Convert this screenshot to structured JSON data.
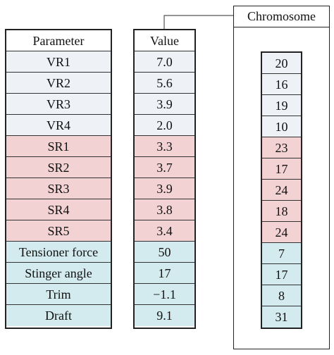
{
  "header": {
    "parameter": "Parameter",
    "value": "Value",
    "chromosome": "Chromosome"
  },
  "rows": [
    {
      "parameter": "VR1",
      "value": "7.0",
      "gene": "20",
      "group": "g1"
    },
    {
      "parameter": "VR2",
      "value": "5.6",
      "gene": "16",
      "group": "g1"
    },
    {
      "parameter": "VR3",
      "value": "3.9",
      "gene": "19",
      "group": "g1"
    },
    {
      "parameter": "VR4",
      "value": "2.0",
      "gene": "10",
      "group": "g1"
    },
    {
      "parameter": "SR1",
      "value": "3.3",
      "gene": "23",
      "group": "g2"
    },
    {
      "parameter": "SR2",
      "value": "3.7",
      "gene": "17",
      "group": "g2"
    },
    {
      "parameter": "SR3",
      "value": "3.9",
      "gene": "24",
      "group": "g2"
    },
    {
      "parameter": "SR4",
      "value": "3.8",
      "gene": "18",
      "group": "g2"
    },
    {
      "parameter": "SR5",
      "value": "3.4",
      "gene": "24",
      "group": "g2"
    },
    {
      "parameter": "Tensioner force",
      "value": "50",
      "gene": "7",
      "group": "g3"
    },
    {
      "parameter": "Stinger angle",
      "value": "17",
      "gene": "17",
      "group": "g3"
    },
    {
      "parameter": "Trim",
      "value": "−1.1",
      "gene": "8",
      "group": "g3"
    },
    {
      "parameter": "Draft",
      "value": "9.1",
      "gene": "31",
      "group": "g3"
    }
  ],
  "colors": {
    "g1": "#eef2f7",
    "g2": "#f2d2d2",
    "g3": "#d3ebee",
    "border": "#222222"
  }
}
